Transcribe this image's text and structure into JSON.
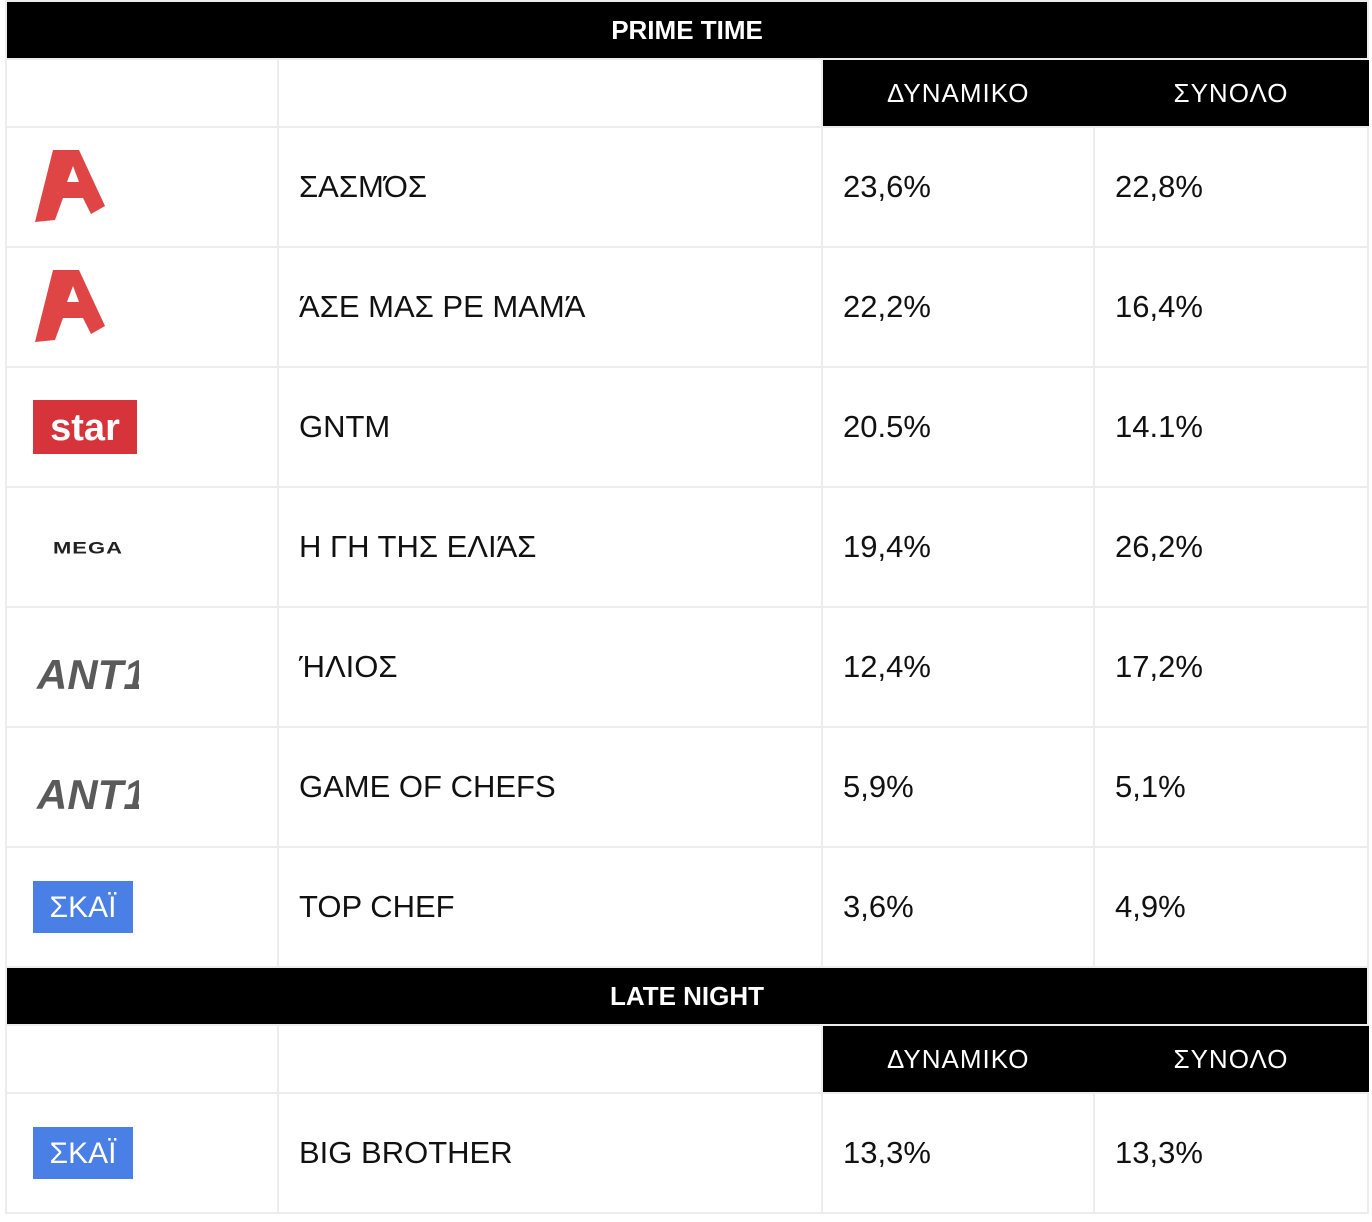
{
  "sections": [
    {
      "title": "PRIME TIME",
      "columns": [
        "ΔΥΝΑΜΙΚΟ",
        "ΣΥΝΟΛΟ"
      ],
      "rows": [
        {
          "channel_logo": "alpha-logo",
          "show": "ΣΑΣΜΌΣ",
          "dynamiko": "23,6%",
          "synolo": "22,8%"
        },
        {
          "channel_logo": "alpha-logo",
          "show": "ΆΣΕ ΜΑΣ ΡΕ ΜΑΜΆ",
          "dynamiko": "22,2%",
          "synolo": "16,4%"
        },
        {
          "channel_logo": "star-logo",
          "show": "GNTM",
          "dynamiko": "20.5%",
          "synolo": "14.1%"
        },
        {
          "channel_logo": "mega-logo",
          "show": "Η ΓΗ ΤΗΣ ΕΛΙΆΣ",
          "dynamiko": "19,4%",
          "synolo": "26,2%"
        },
        {
          "channel_logo": "ant1-logo",
          "show": "ΉΛΙΟΣ",
          "dynamiko": "12,4%",
          "synolo": "17,2%"
        },
        {
          "channel_logo": "ant1-logo",
          "show": "GAME OF CHEFS",
          "dynamiko": "5,9%",
          "synolo": "5,1%"
        },
        {
          "channel_logo": "skai-logo",
          "show": "TOP CHEF",
          "dynamiko": "3,6%",
          "synolo": "4,9%"
        }
      ]
    },
    {
      "title": "LATE NIGHT",
      "columns": [
        "ΔΥΝΑΜΙΚΟ",
        "ΣΥΝΟΛΟ"
      ],
      "rows": [
        {
          "channel_logo": "skai-logo",
          "show": "BIG BROTHER",
          "dynamiko": "13,3%",
          "synolo": "13,3%"
        }
      ]
    }
  ],
  "logos": {
    "alpha": {
      "color": "#e04545"
    },
    "star": {
      "text": "star",
      "bg": "#d6333a",
      "fg": "#ffffff"
    },
    "mega": {
      "text": "MEGA",
      "fg": "#222222"
    },
    "ant1": {
      "text": "ANT1",
      "fg": "#555555"
    },
    "skai": {
      "text": "ΣΚΑΪ",
      "bg": "#4a7fe6",
      "fg": "#ffffff"
    }
  }
}
